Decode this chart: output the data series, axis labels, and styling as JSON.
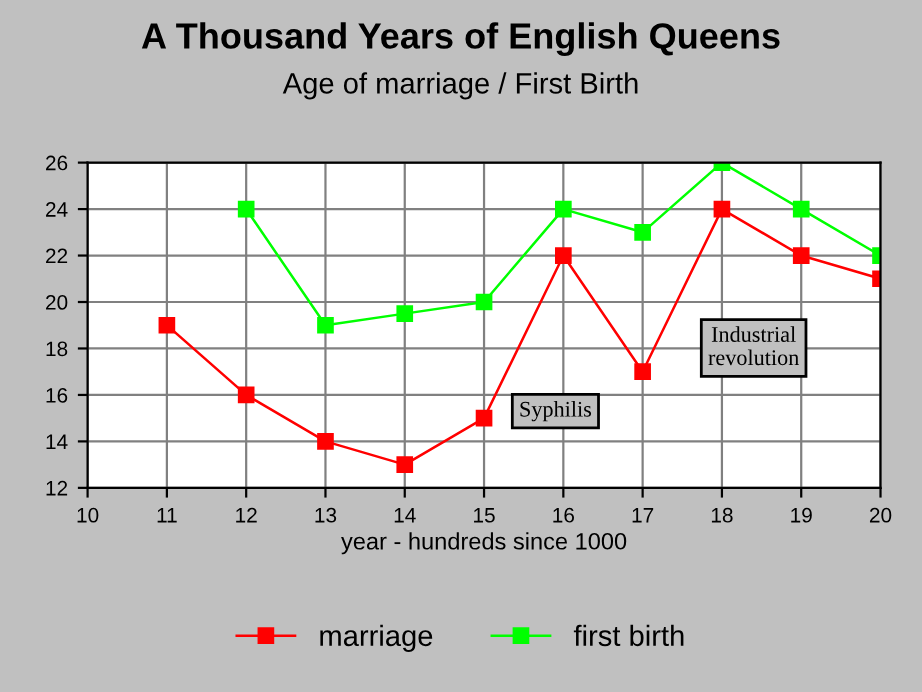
{
  "chart_data": {
    "type": "line",
    "title": "A Thousand Years of English Queens",
    "subtitle": "Age of marriage / First Birth",
    "xlabel": "year - hundreds since 1000",
    "x": [
      11,
      12,
      13,
      14,
      15,
      16,
      17,
      18,
      19,
      20
    ],
    "series": [
      {
        "name": "marriage",
        "color": "#ff0000",
        "values": [
          19,
          16,
          14,
          13,
          15,
          22,
          17,
          24,
          22,
          21
        ]
      },
      {
        "name": "first birth",
        "color": "#00ff00",
        "values": [
          null,
          24,
          19,
          19.5,
          20,
          24,
          23,
          26,
          24,
          22
        ]
      }
    ],
    "xlim": [
      10,
      20
    ],
    "xticks": [
      10,
      11,
      12,
      13,
      14,
      15,
      16,
      17,
      18,
      19,
      20
    ],
    "ylim": [
      12,
      26
    ],
    "yticks": [
      12,
      14,
      16,
      18,
      20,
      22,
      24,
      26
    ],
    "annotations": [
      {
        "text": "Syphilis",
        "x": 15.9,
        "y": 15.3
      },
      "Industrial\nrevolution"
    ],
    "grid": true,
    "legend": "bottom",
    "marker": "square",
    "line_style": "solid"
  }
}
